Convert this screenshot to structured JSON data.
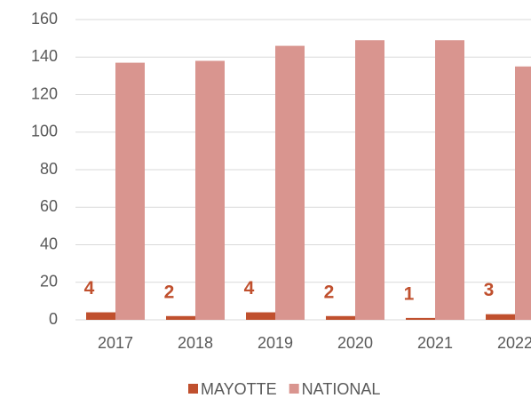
{
  "chart_data": {
    "type": "bar",
    "categories": [
      "2017",
      "2018",
      "2019",
      "2020",
      "2021",
      "2022"
    ],
    "series": [
      {
        "name": "MAYOTTE",
        "color": "#c0502e",
        "values": [
          4,
          2,
          4,
          2,
          1,
          3
        ]
      },
      {
        "name": "NATIONAL",
        "color": "#d9958f",
        "values": [
          137,
          138,
          146,
          149,
          149,
          135
        ]
      }
    ],
    "ylim": [
      0,
      160
    ],
    "yticks": [
      0,
      20,
      40,
      60,
      80,
      100,
      120,
      140,
      160
    ],
    "grid": true,
    "legend": "bottom",
    "data_labels": [
      true,
      false
    ]
  }
}
